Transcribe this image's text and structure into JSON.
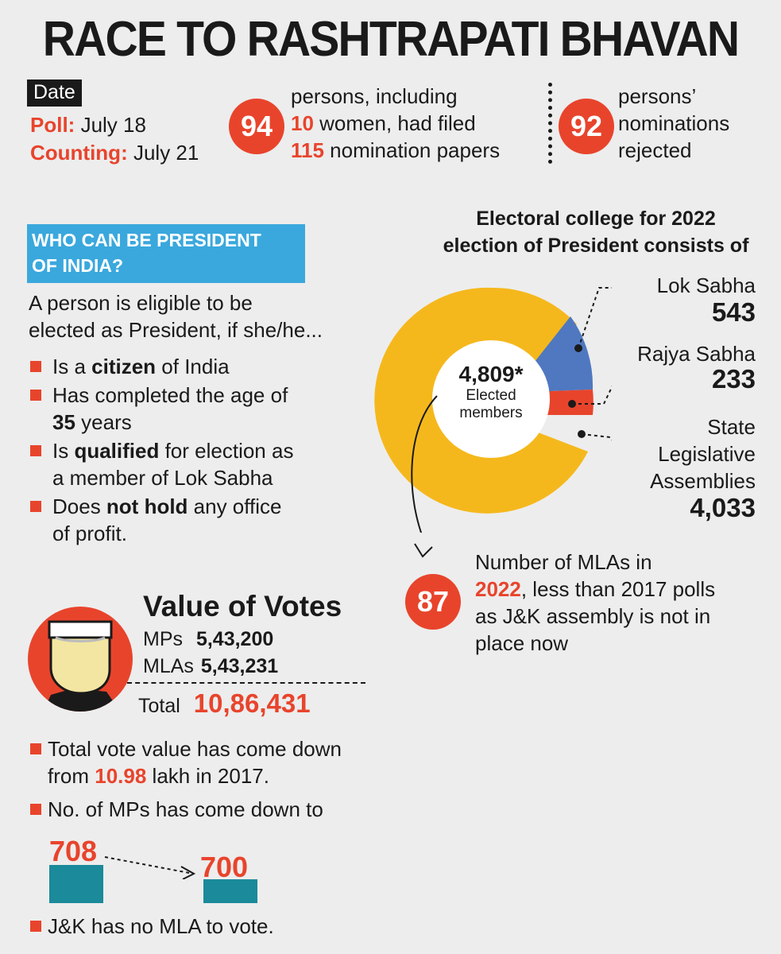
{
  "title": "RACE TO RASHTRAPATI  BHAVAN",
  "date": {
    "tag": "Date",
    "poll_label": "Poll:",
    "poll_value": " July 18",
    "counting_label": "Counting:",
    "counting_value": " July 21"
  },
  "nominations": {
    "count": "94",
    "line1": "persons, including",
    "women_count": "10",
    "line2": " women,  had filed",
    "papers_count": "115",
    "line3": " nomination papers"
  },
  "rejections": {
    "count": "92",
    "line1": "persons’",
    "line2": "nominations",
    "line3": "rejected"
  },
  "eligibility": {
    "heading_line1": "WHO CAN BE PRESIDENT",
    "heading_line2": "OF INDIA?",
    "intro_line1": "A person is eligible to be",
    "intro_line2": "elected as President, if she/he...",
    "bullets": [
      {
        "pre": "Is a ",
        "bold": "citizen",
        "post": " of India",
        "line2": ""
      },
      {
        "pre": "Has completed the age of",
        "bold": "",
        "post": "",
        "line2_bold": "35",
        "line2": " years"
      },
      {
        "pre": "Is ",
        "bold": "qualified",
        "post": " for election as",
        "line2": "a member of Lok Sabha"
      },
      {
        "pre": "Does ",
        "bold": "not hold",
        "post": " any office",
        "line2": "of profit."
      }
    ]
  },
  "electoral_college": {
    "title_line1": "Electoral college for 2022",
    "title_line2": "election of President consists of",
    "center_value": "4,809*",
    "center_label_line1": "Elected",
    "center_label_line2": "members",
    "lok_sabha_label": "Lok Sabha",
    "lok_sabha_value": "543",
    "rajya_sabha_label": "Rajya Sabha",
    "rajya_sabha_value": "233",
    "state_label_line1": "State",
    "state_label_line2": "Legislative",
    "state_label_line3": "Assemblies",
    "state_value": "4,033",
    "colors": {
      "lok_sabha": "#4f78c0",
      "rajya_sabha": "#e8442c",
      "state": "#f5b81c"
    }
  },
  "mlas_note": {
    "count": "87",
    "line1": "Number of MLAs in",
    "year": "2022",
    "line2_rest": ", less than 2017 polls",
    "line3": "as J&K assembly is not in",
    "line4": "place now"
  },
  "value_of_votes": {
    "title": "Value of Votes",
    "mps_label": "MPs",
    "mps_value": "5,43,200",
    "mlas_label": "MLAs",
    "mlas_value": "5,43,231",
    "total_label": "Total",
    "total_value": "10,86,431"
  },
  "notes": {
    "note1_line1": "Total vote value has come down",
    "note1_pre": "from ",
    "note1_value": "10.98",
    "note1_post": " lakh in 2017.",
    "note2": "No. of MPs has come down to",
    "mps_before": "708",
    "mps_after": "700",
    "note3": "J&K has no MLA to vote."
  }
}
